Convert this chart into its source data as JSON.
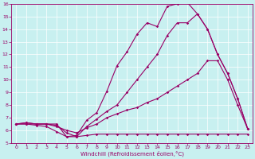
{
  "xlabel": "Windchill (Refroidissement éolien,°C)",
  "bg_color": "#c8f0f0",
  "line_color": "#990066",
  "xlim": [
    -0.5,
    23.5
  ],
  "ylim": [
    5,
    16
  ],
  "xticks": [
    0,
    1,
    2,
    3,
    4,
    5,
    6,
    7,
    8,
    9,
    10,
    11,
    12,
    13,
    14,
    15,
    16,
    17,
    18,
    19,
    20,
    21,
    22,
    23
  ],
  "yticks": [
    5,
    6,
    7,
    8,
    9,
    10,
    11,
    12,
    13,
    14,
    15,
    16
  ],
  "line1_x": [
    0,
    1,
    2,
    3,
    4,
    5,
    6,
    7,
    8,
    9,
    10,
    11,
    12,
    13,
    14,
    15,
    16,
    17,
    18,
    19,
    20,
    21,
    22,
    23
  ],
  "line1_y": [
    6.5,
    6.5,
    6.4,
    6.3,
    5.9,
    5.5,
    5.5,
    5.6,
    5.7,
    5.7,
    5.7,
    5.7,
    5.7,
    5.7,
    5.7,
    5.7,
    5.7,
    5.7,
    5.7,
    5.7,
    5.7,
    5.7,
    5.7,
    5.7
  ],
  "line2_x": [
    0,
    1,
    2,
    3,
    4,
    5,
    6,
    7,
    8,
    9,
    10,
    11,
    12,
    13,
    14,
    15,
    16,
    17,
    18,
    19,
    20,
    21,
    22,
    23
  ],
  "line2_y": [
    6.5,
    6.5,
    6.5,
    6.5,
    6.3,
    6.0,
    5.8,
    6.2,
    6.5,
    7.0,
    7.3,
    7.6,
    7.8,
    8.2,
    8.5,
    9.0,
    9.5,
    10.0,
    10.5,
    11.5,
    11.5,
    10.0,
    8.0,
    6.1
  ],
  "line3_x": [
    0,
    1,
    2,
    3,
    4,
    5,
    6,
    7,
    8,
    9,
    10,
    11,
    12,
    13,
    14,
    15,
    16,
    17,
    18,
    19,
    20,
    21,
    22,
    23
  ],
  "line3_y": [
    6.5,
    6.6,
    6.5,
    6.5,
    6.4,
    5.8,
    5.5,
    6.3,
    6.9,
    7.5,
    8.0,
    9.0,
    10.0,
    11.0,
    12.0,
    13.5,
    14.5,
    14.5,
    15.2,
    14.0,
    12.0,
    10.5,
    8.5,
    6.1
  ],
  "line4_x": [
    0,
    1,
    2,
    3,
    4,
    5,
    6,
    7,
    8,
    9,
    10,
    11,
    12,
    13,
    14,
    15,
    16,
    17,
    18,
    19,
    20,
    21,
    22,
    23
  ],
  "line4_y": [
    6.5,
    6.6,
    6.5,
    6.5,
    6.5,
    5.5,
    5.6,
    6.8,
    7.4,
    9.1,
    11.1,
    12.2,
    13.6,
    14.5,
    14.2,
    15.8,
    16.0,
    16.1,
    15.2,
    14.0,
    12.0,
    10.5,
    8.5,
    6.1
  ]
}
